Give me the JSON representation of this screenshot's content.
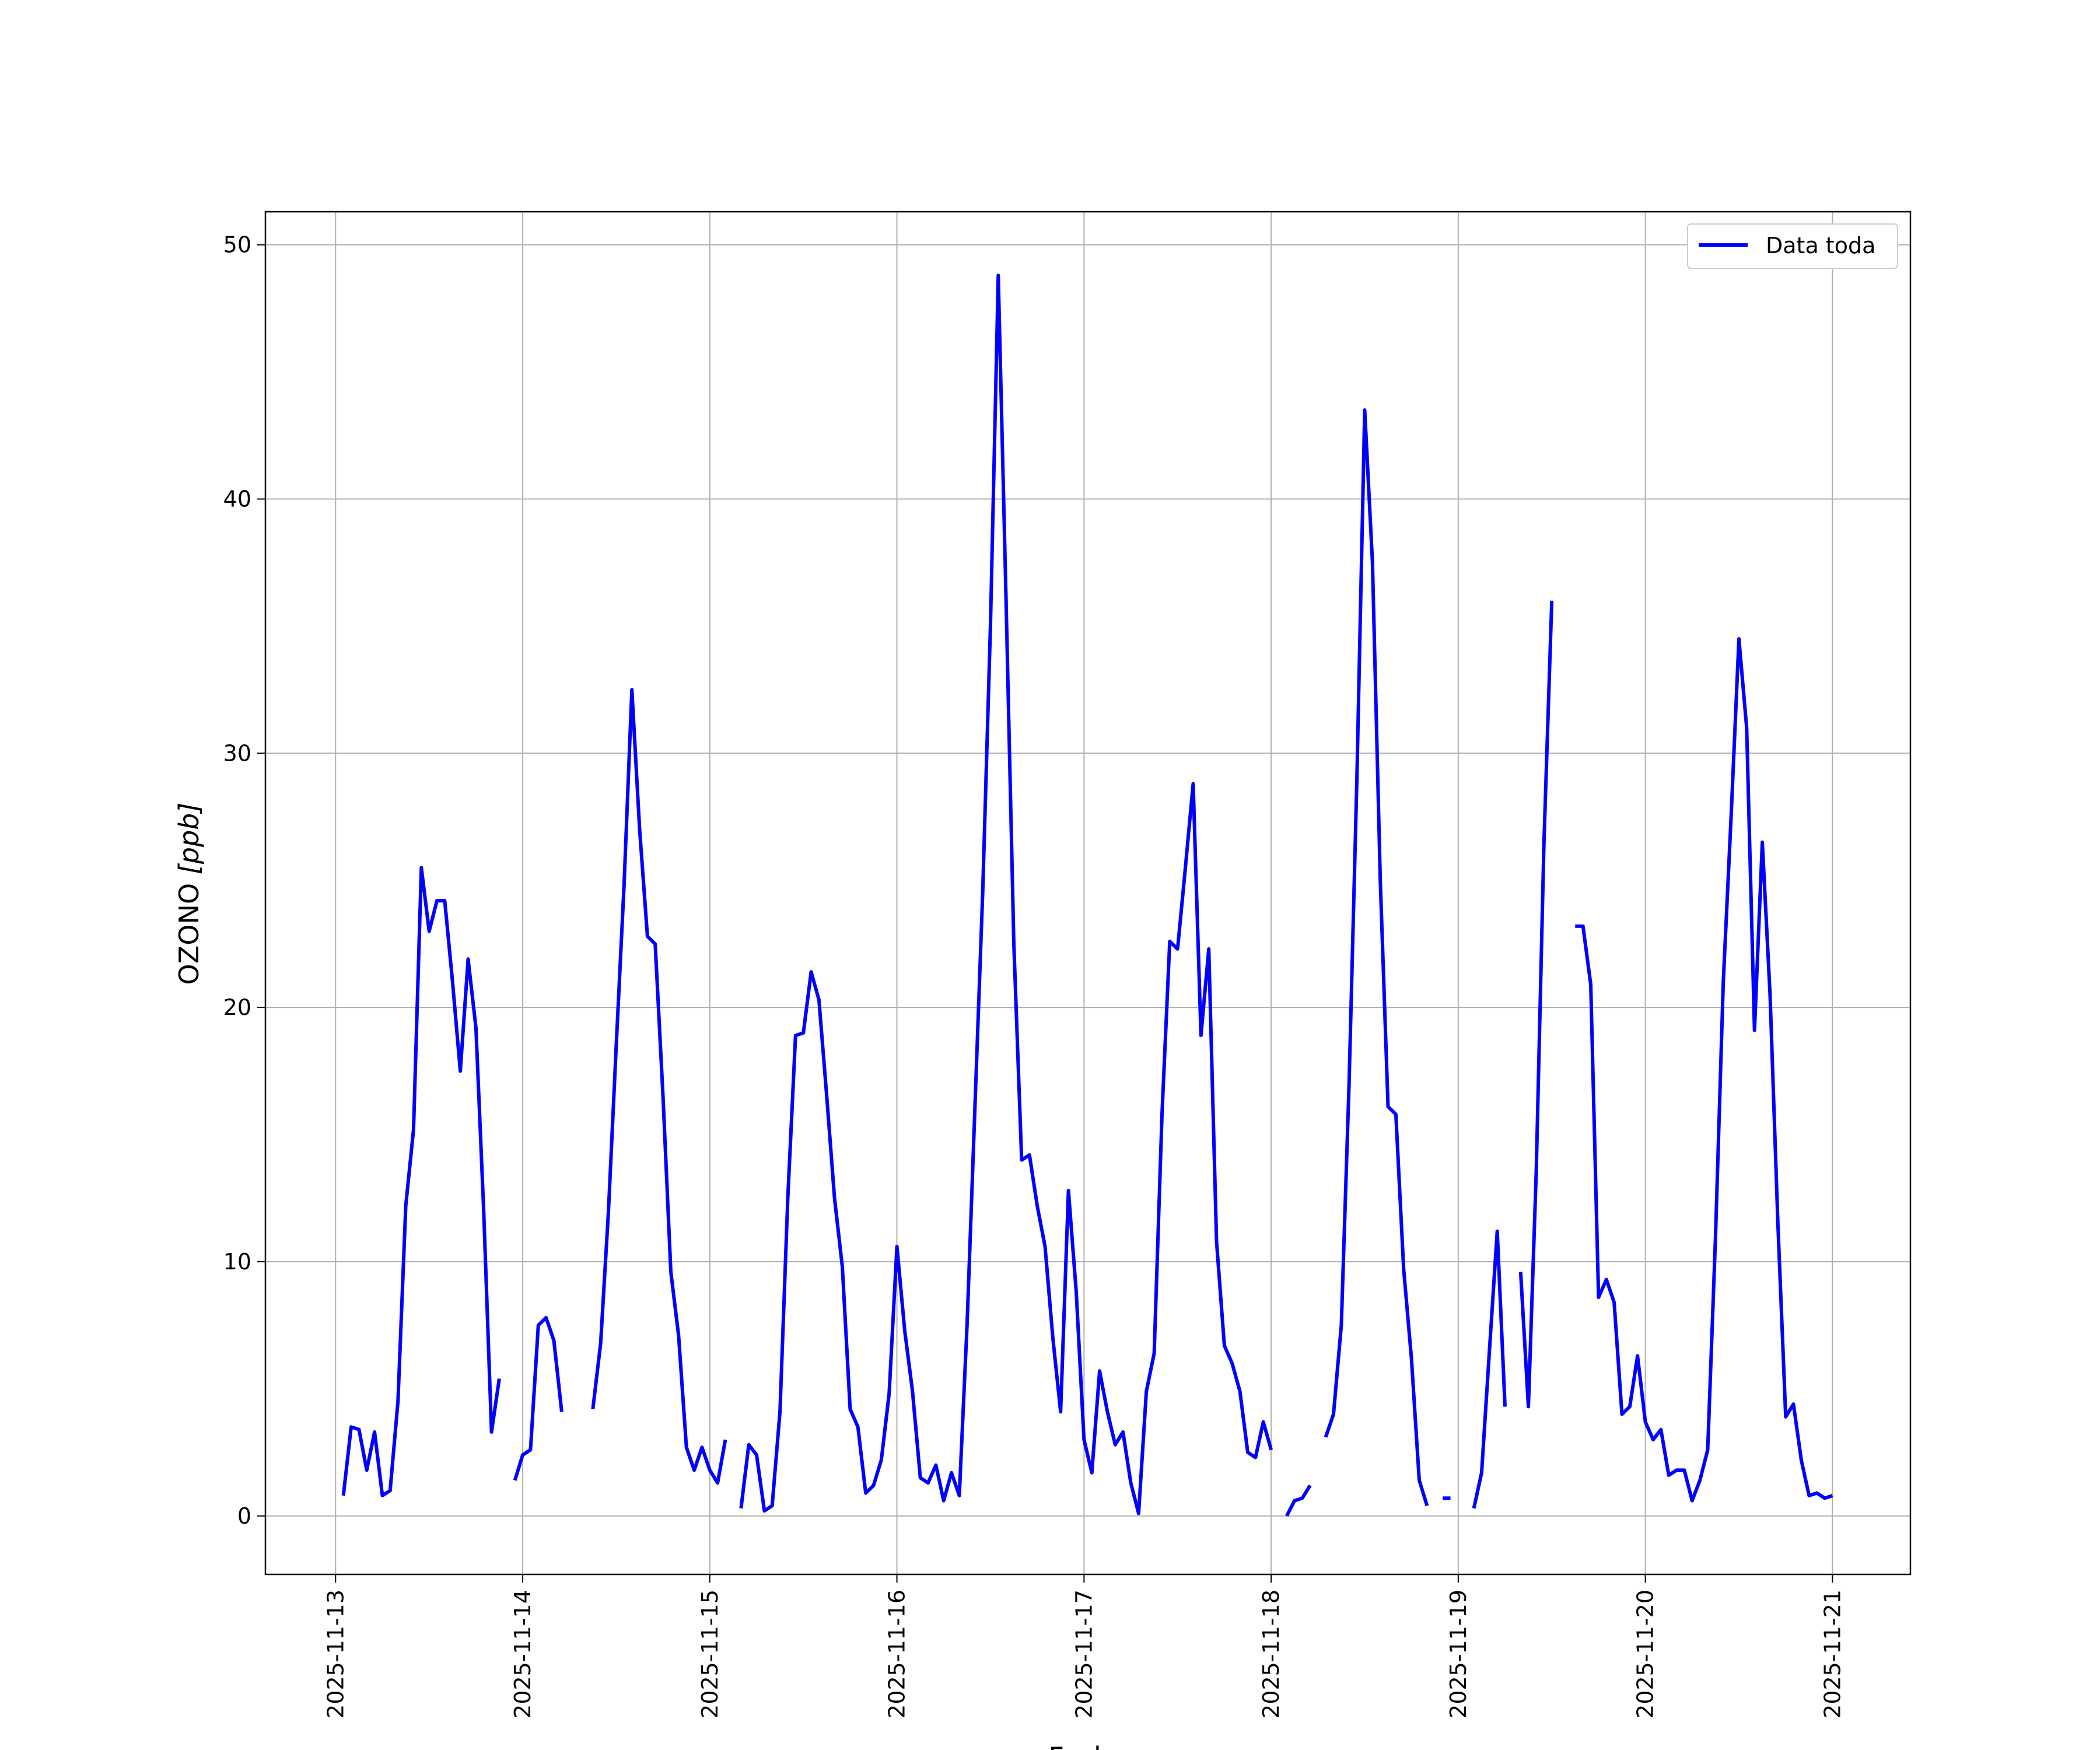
{
  "chart_data": {
    "type": "line",
    "xlabel": "Fecha",
    "ylabel_main": "OZONO",
    "ylabel_unit": "[ppb]",
    "ylim": [
      -2.3,
      51.3
    ],
    "xlim": [
      "2025-11-12T15:00",
      "2025-11-21T10:00"
    ],
    "yticks": [
      0,
      10,
      20,
      30,
      40,
      50
    ],
    "xticks": [
      "2025-11-13",
      "2025-11-14",
      "2025-11-15",
      "2025-11-16",
      "2025-11-17",
      "2025-11-18",
      "2025-11-19",
      "2025-11-20",
      "2025-11-21"
    ],
    "grid": true,
    "legend_position": "top-right",
    "series": [
      {
        "name": "Data toda",
        "color": "#0000ff",
        "segments": [
          [
            [
              "2025-11-13T01:00",
              0.8
            ],
            [
              "2025-11-13T02:00",
              3.5
            ],
            [
              "2025-11-13T03:00",
              3.4
            ],
            [
              "2025-11-13T04:00",
              1.8
            ],
            [
              "2025-11-13T05:00",
              3.3
            ],
            [
              "2025-11-13T06:00",
              0.8
            ],
            [
              "2025-11-13T07:00",
              1.0
            ],
            [
              "2025-11-13T08:00",
              4.5
            ],
            [
              "2025-11-13T09:00",
              12.2
            ],
            [
              "2025-11-13T10:00",
              15.2
            ],
            [
              "2025-11-13T11:00",
              25.5
            ],
            [
              "2025-11-13T12:00",
              23.0
            ],
            [
              "2025-11-13T13:00",
              24.2
            ],
            [
              "2025-11-13T14:00",
              24.2
            ],
            [
              "2025-11-13T15:00",
              21.0
            ],
            [
              "2025-11-13T16:00",
              17.5
            ],
            [
              "2025-11-13T17:00",
              21.9
            ],
            [
              "2025-11-13T18:00",
              19.2
            ],
            [
              "2025-11-13T19:00",
              12.0
            ],
            [
              "2025-11-13T20:00",
              3.3
            ],
            [
              "2025-11-13T21:00",
              5.4
            ]
          ],
          [
            [
              "2025-11-13T23:00",
              1.4
            ],
            [
              "2025-11-14T00:00",
              2.4
            ],
            [
              "2025-11-14T01:00",
              2.6
            ],
            [
              "2025-11-14T02:00",
              7.5
            ],
            [
              "2025-11-14T03:00",
              7.8
            ],
            [
              "2025-11-14T04:00",
              6.9
            ],
            [
              "2025-11-14T05:00",
              4.1
            ]
          ],
          [
            [
              "2025-11-14T09:00",
              4.2
            ],
            [
              "2025-11-14T10:00",
              6.8
            ],
            [
              "2025-11-14T11:00",
              12.0
            ],
            [
              "2025-11-14T12:00",
              18.5
            ],
            [
              "2025-11-14T13:00",
              24.8
            ],
            [
              "2025-11-14T14:00",
              32.5
            ],
            [
              "2025-11-14T15:00",
              27.0
            ],
            [
              "2025-11-14T16:00",
              22.8
            ],
            [
              "2025-11-14T17:00",
              22.5
            ],
            [
              "2025-11-14T18:00",
              16.5
            ],
            [
              "2025-11-14T19:00",
              9.6
            ],
            [
              "2025-11-14T20:00",
              7.1
            ],
            [
              "2025-11-14T21:00",
              2.7
            ],
            [
              "2025-11-14T22:00",
              1.8
            ],
            [
              "2025-11-14T23:00",
              2.7
            ],
            [
              "2025-11-15T00:00",
              1.8
            ],
            [
              "2025-11-15T01:00",
              1.3
            ],
            [
              "2025-11-15T02:00",
              3.0
            ]
          ],
          [
            [
              "2025-11-15T04:00",
              0.3
            ],
            [
              "2025-11-15T05:00",
              2.8
            ],
            [
              "2025-11-15T06:00",
              2.4
            ],
            [
              "2025-11-15T07:00",
              0.2
            ],
            [
              "2025-11-15T08:00",
              0.4
            ],
            [
              "2025-11-15T09:00",
              4.1
            ],
            [
              "2025-11-15T10:00",
              12.5
            ],
            [
              "2025-11-15T11:00",
              18.9
            ],
            [
              "2025-11-15T12:00",
              19.0
            ],
            [
              "2025-11-15T13:00",
              21.4
            ],
            [
              "2025-11-15T14:00",
              20.3
            ],
            [
              "2025-11-15T15:00",
              16.5
            ],
            [
              "2025-11-15T16:00",
              12.5
            ],
            [
              "2025-11-15T17:00",
              9.8
            ],
            [
              "2025-11-15T18:00",
              4.2
            ],
            [
              "2025-11-15T19:00",
              3.5
            ],
            [
              "2025-11-15T20:00",
              0.9
            ],
            [
              "2025-11-15T21:00",
              1.2
            ],
            [
              "2025-11-15T22:00",
              2.2
            ],
            [
              "2025-11-15T23:00",
              4.8
            ],
            [
              "2025-11-16T00:00",
              10.6
            ],
            [
              "2025-11-16T01:00",
              7.3
            ],
            [
              "2025-11-16T02:00",
              4.9
            ],
            [
              "2025-11-16T03:00",
              1.5
            ],
            [
              "2025-11-16T04:00",
              1.3
            ],
            [
              "2025-11-16T05:00",
              2.0
            ],
            [
              "2025-11-16T06:00",
              0.6
            ],
            [
              "2025-11-16T07:00",
              1.7
            ],
            [
              "2025-11-16T08:00",
              0.8
            ],
            [
              "2025-11-16T09:00",
              7.5
            ],
            [
              "2025-11-16T10:00",
              16.0
            ],
            [
              "2025-11-16T11:00",
              24.5
            ],
            [
              "2025-11-16T12:00",
              35.0
            ],
            [
              "2025-11-16T13:00",
              48.8
            ],
            [
              "2025-11-16T14:00",
              36.0
            ],
            [
              "2025-11-16T15:00",
              22.5
            ],
            [
              "2025-11-16T16:00",
              14.0
            ],
            [
              "2025-11-16T17:00",
              14.2
            ],
            [
              "2025-11-16T18:00",
              12.2
            ],
            [
              "2025-11-16T19:00",
              10.6
            ],
            [
              "2025-11-16T20:00",
              7.0
            ],
            [
              "2025-11-16T21:00",
              4.1
            ],
            [
              "2025-11-16T22:00",
              12.8
            ],
            [
              "2025-11-16T23:00",
              8.8
            ],
            [
              "2025-11-17T00:00",
              3.0
            ],
            [
              "2025-11-17T01:00",
              1.7
            ],
            [
              "2025-11-17T02:00",
              5.7
            ],
            [
              "2025-11-17T03:00",
              4.1
            ],
            [
              "2025-11-17T04:00",
              2.8
            ],
            [
              "2025-11-17T05:00",
              3.3
            ],
            [
              "2025-11-17T06:00",
              1.3
            ],
            [
              "2025-11-17T07:00",
              0.1
            ],
            [
              "2025-11-17T08:00",
              4.9
            ],
            [
              "2025-11-17T09:00",
              6.4
            ],
            [
              "2025-11-17T10:00",
              15.8
            ],
            [
              "2025-11-17T11:00",
              22.6
            ],
            [
              "2025-11-17T12:00",
              22.3
            ],
            [
              "2025-11-17T13:00",
              25.5
            ],
            [
              "2025-11-17T14:00",
              28.8
            ],
            [
              "2025-11-17T15:00",
              18.9
            ],
            [
              "2025-11-17T16:00",
              22.3
            ],
            [
              "2025-11-17T17:00",
              10.8
            ],
            [
              "2025-11-17T18:00",
              6.7
            ],
            [
              "2025-11-17T19:00",
              6.0
            ],
            [
              "2025-11-17T20:00",
              4.9
            ],
            [
              "2025-11-17T21:00",
              2.5
            ],
            [
              "2025-11-17T22:00",
              2.3
            ],
            [
              "2025-11-17T23:00",
              3.7
            ],
            [
              "2025-11-18T00:00",
              2.6
            ]
          ],
          [
            [
              "2025-11-18T02:00",
              0.0
            ],
            [
              "2025-11-18T03:00",
              0.6
            ],
            [
              "2025-11-18T04:00",
              0.7
            ],
            [
              "2025-11-18T05:00",
              1.2
            ]
          ],
          [
            [
              "2025-11-18T07:00",
              3.1
            ],
            [
              "2025-11-18T08:00",
              4.0
            ],
            [
              "2025-11-18T09:00",
              7.5
            ],
            [
              "2025-11-18T10:00",
              17.0
            ],
            [
              "2025-11-18T11:00",
              29.0
            ],
            [
              "2025-11-18T12:00",
              43.5
            ],
            [
              "2025-11-18T13:00",
              37.5
            ],
            [
              "2025-11-18T14:00",
              25.0
            ],
            [
              "2025-11-18T15:00",
              16.1
            ],
            [
              "2025-11-18T16:00",
              15.8
            ],
            [
              "2025-11-18T17:00",
              9.7
            ],
            [
              "2025-11-18T18:00",
              6.2
            ],
            [
              "2025-11-18T19:00",
              1.4
            ],
            [
              "2025-11-18T20:00",
              0.4
            ]
          ],
          [
            [
              "2025-11-18T22:00",
              0.7
            ],
            [
              "2025-11-18T23:00",
              0.7
            ]
          ],
          [
            [
              "2025-11-19T02:00",
              0.3
            ],
            [
              "2025-11-19T03:00",
              1.7
            ],
            [
              "2025-11-19T04:00",
              6.5
            ],
            [
              "2025-11-19T05:00",
              11.2
            ],
            [
              "2025-11-19T06:00",
              4.3
            ]
          ],
          [
            [
              "2025-11-19T08:00",
              9.6
            ],
            [
              "2025-11-19T09:00",
              4.3
            ],
            [
              "2025-11-19T10:00",
              13.5
            ],
            [
              "2025-11-19T11:00",
              26.5
            ],
            [
              "2025-11-19T12:00",
              36.0
            ]
          ],
          [
            [
              "2025-11-19T15:00",
              23.2
            ],
            [
              "2025-11-19T16:00",
              23.2
            ],
            [
              "2025-11-19T17:00",
              20.9
            ],
            [
              "2025-11-19T18:00",
              8.6
            ],
            [
              "2025-11-19T19:00",
              9.3
            ],
            [
              "2025-11-19T20:00",
              8.4
            ],
            [
              "2025-11-19T21:00",
              4.0
            ],
            [
              "2025-11-19T22:00",
              4.3
            ],
            [
              "2025-11-19T23:00",
              6.3
            ],
            [
              "2025-11-20T00:00",
              3.7
            ],
            [
              "2025-11-20T01:00",
              3.0
            ],
            [
              "2025-11-20T02:00",
              3.4
            ],
            [
              "2025-11-20T03:00",
              1.6
            ],
            [
              "2025-11-20T04:00",
              1.8
            ],
            [
              "2025-11-20T05:00",
              1.8
            ],
            [
              "2025-11-20T06:00",
              0.6
            ],
            [
              "2025-11-20T07:00",
              1.4
            ],
            [
              "2025-11-20T08:00",
              2.6
            ],
            [
              "2025-11-20T09:00",
              11.0
            ],
            [
              "2025-11-20T10:00",
              21.0
            ],
            [
              "2025-11-20T11:00",
              27.5
            ],
            [
              "2025-11-20T12:00",
              34.5
            ],
            [
              "2025-11-20T13:00",
              31.0
            ],
            [
              "2025-11-20T14:00",
              19.1
            ],
            [
              "2025-11-20T15:00",
              26.5
            ],
            [
              "2025-11-20T16:00",
              20.5
            ],
            [
              "2025-11-20T17:00",
              11.5
            ],
            [
              "2025-11-20T18:00",
              3.9
            ],
            [
              "2025-11-20T19:00",
              4.4
            ],
            [
              "2025-11-20T20:00",
              2.2
            ],
            [
              "2025-11-20T21:00",
              0.8
            ],
            [
              "2025-11-20T22:00",
              0.9
            ],
            [
              "2025-11-20T23:00",
              0.7
            ],
            [
              "2025-11-21T00:00",
              0.8
            ]
          ]
        ]
      }
    ]
  }
}
